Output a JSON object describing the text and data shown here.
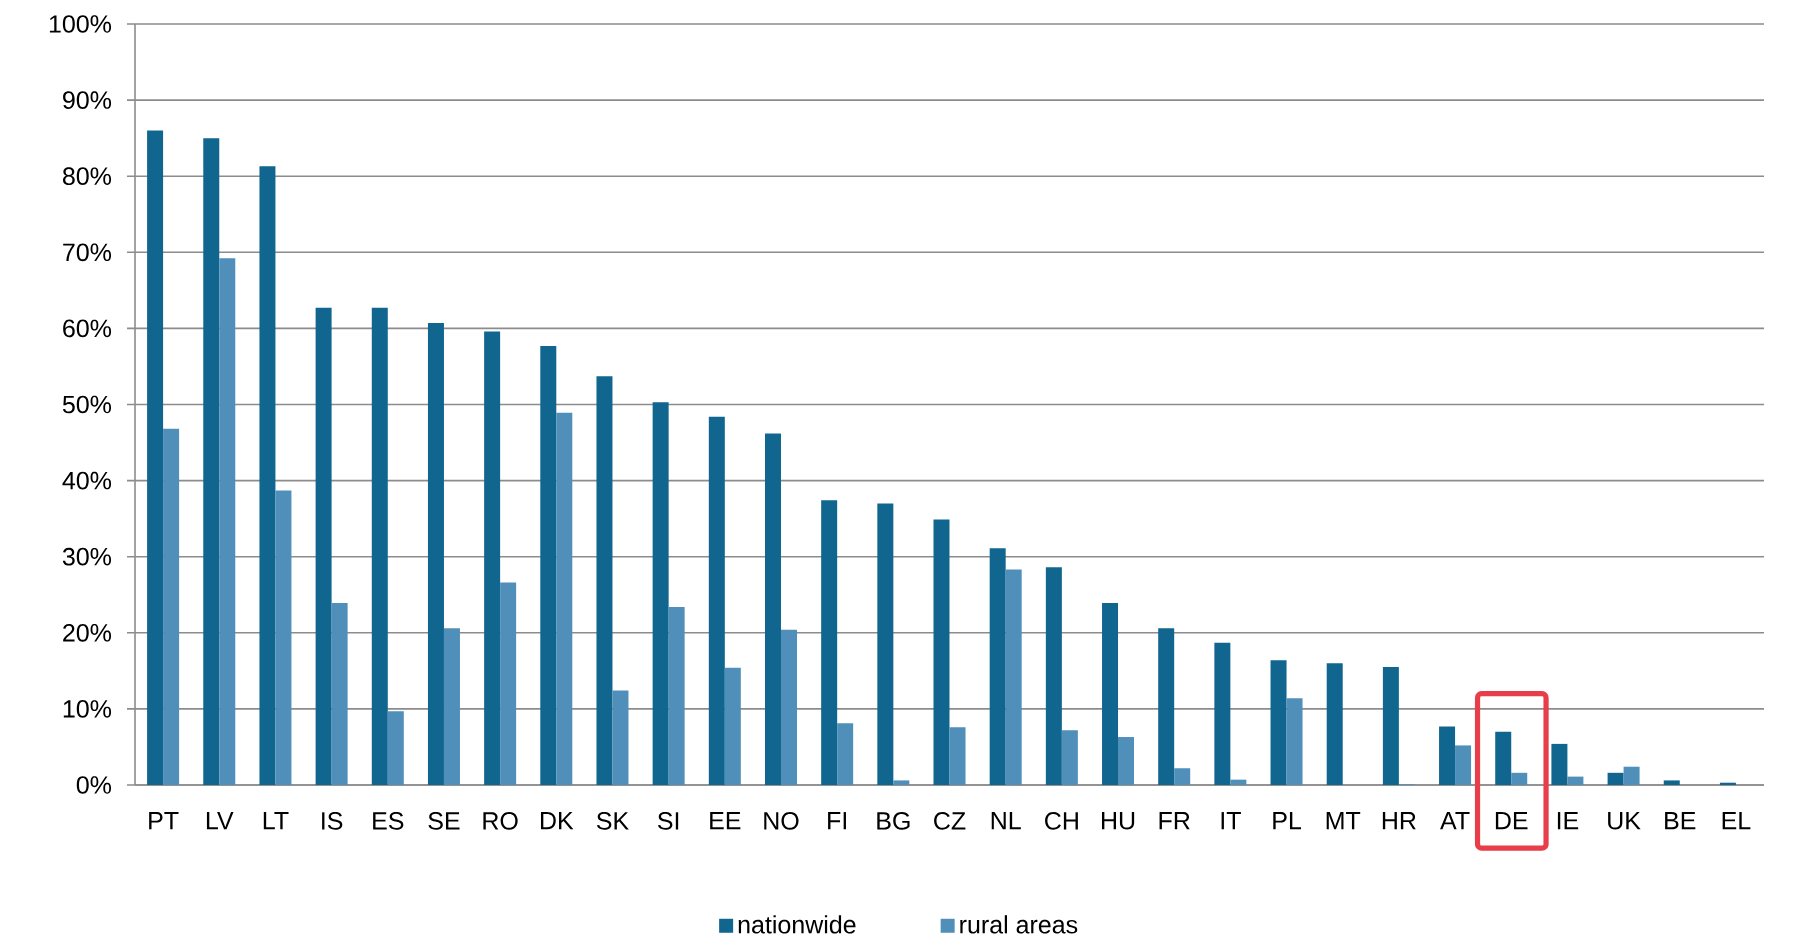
{
  "chart_data": {
    "type": "bar",
    "categories": [
      "PT",
      "LV",
      "LT",
      "IS",
      "ES",
      "SE",
      "RO",
      "DK",
      "SK",
      "SI",
      "EE",
      "NO",
      "FI",
      "BG",
      "CZ",
      "NL",
      "CH",
      "HU",
      "FR",
      "IT",
      "PL",
      "MT",
      "HR",
      "AT",
      "DE",
      "IE",
      "UK",
      "BE",
      "EL"
    ],
    "series": [
      {
        "name": "nationwide",
        "color": "#11668f",
        "values": [
          86.0,
          85.0,
          81.3,
          62.7,
          62.7,
          60.7,
          59.6,
          57.7,
          53.7,
          50.3,
          48.4,
          46.2,
          37.4,
          37.0,
          34.9,
          31.1,
          28.6,
          23.9,
          20.6,
          18.7,
          16.4,
          16.0,
          15.5,
          7.7,
          7.0,
          5.4,
          1.6,
          0.6,
          0.3
        ]
      },
      {
        "name": "rural areas",
        "color": "#4f8fba",
        "values": [
          46.8,
          69.2,
          38.7,
          23.9,
          9.7,
          20.6,
          26.6,
          48.9,
          12.4,
          23.4,
          15.4,
          20.4,
          8.1,
          0.6,
          7.6,
          28.3,
          7.2,
          6.3,
          2.2,
          0.7,
          11.4,
          0,
          0.1,
          5.2,
          1.6,
          1.1,
          2.4,
          0,
          0
        ]
      }
    ],
    "ylim": [
      0,
      100
    ],
    "yticks": [
      {
        "value": 0,
        "label": "0%"
      },
      {
        "value": 10,
        "label": "10%"
      },
      {
        "value": 20,
        "label": "20%"
      },
      {
        "value": 30,
        "label": "30%"
      },
      {
        "value": 40,
        "label": "40%"
      },
      {
        "value": 50,
        "label": "50%"
      },
      {
        "value": 60,
        "label": "60%"
      },
      {
        "value": 70,
        "label": "70%"
      },
      {
        "value": 80,
        "label": "80%"
      },
      {
        "value": 90,
        "label": "90%"
      },
      {
        "value": 100,
        "label": "100%"
      }
    ],
    "grid": "y",
    "legend": "bottom"
  }
}
